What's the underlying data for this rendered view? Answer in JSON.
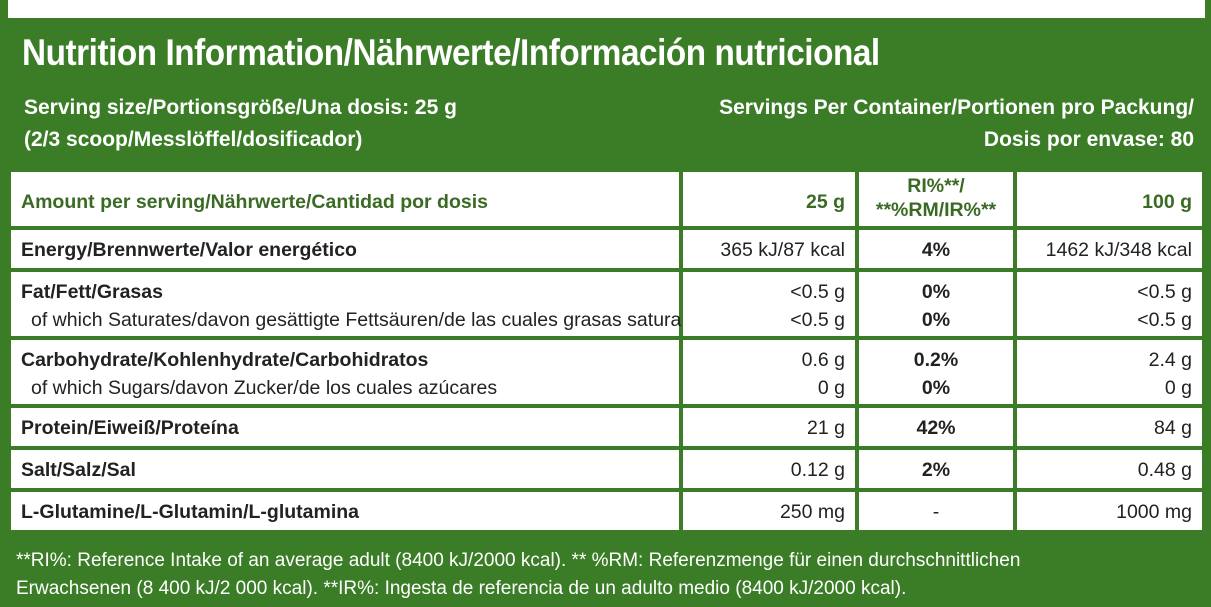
{
  "title": "Nutrition Information/Nährwerte/Información nutricional",
  "serving": {
    "size_line1": "Serving size/Portionsgröße/Una dosis: 25 g",
    "size_line2": "(2/3 scoop/Messlöffel/dosificador)",
    "per_container_line1": "Servings Per Container/Portionen pro Packung/",
    "per_container_line2": "Dosis por envase: 80"
  },
  "table": {
    "header": {
      "amount_label": "Amount per serving/Nährwerte/Cantidad por dosis",
      "per_serving": "25 g",
      "ri_line1": "RI%**/",
      "ri_line2": "**%RM/IR%**",
      "per_100": "100 g"
    },
    "rows": [
      {
        "label": "Energy/Brennwerte/Valor energético",
        "serving": "365 kJ/87 kcal",
        "ri": "4%",
        "per100": "1462 kJ/348 kcal"
      },
      {
        "label": "Fat/Fett/Grasas",
        "serving": "<0.5 g",
        "ri": "0%",
        "per100": "<0.5 g",
        "sub_label": "of which Saturates/davon gesättigte Fettsäuren/de las cuales grasas saturadas",
        "sub_serving": "<0.5 g",
        "sub_ri": "0%",
        "sub_per100": "<0.5 g"
      },
      {
        "label": "Carbohydrate/Kohlenhydrate/Carbohidratos",
        "serving": "0.6 g",
        "ri": "0.2%",
        "per100": "2.4 g",
        "sub_label": "of which Sugars/davon Zucker/de los cuales azúcares",
        "sub_serving": "0 g",
        "sub_ri": "0%",
        "sub_per100": "0 g"
      },
      {
        "label": "Protein/Eiweiß/Proteína",
        "serving": "21 g",
        "ri": "42%",
        "per100": "84 g"
      },
      {
        "label": "Salt/Salz/Sal",
        "serving": "0.12 g",
        "ri": "2%",
        "per100": "0.48 g"
      },
      {
        "label": "L-Glutamine/L-Glutamin/L-glutamina",
        "serving": "250 mg",
        "ri": "-",
        "per100": "1000 mg"
      }
    ]
  },
  "footnote": {
    "line1": "**RI%: Reference Intake of an average adult (8400 kJ/2000 kcal). ** %RM: Referenzmenge für einen durchschnittlichen",
    "line2": "Erwachsenen (8 400 kJ/2 000 kcal). **IR%: Ingesta de referencia de un adulto medio (8400 kJ/2000 kcal)."
  },
  "colors": {
    "panel_green": "#3b7d27",
    "header_text_green": "#3b6a25",
    "cell_bg": "#ffffff"
  }
}
